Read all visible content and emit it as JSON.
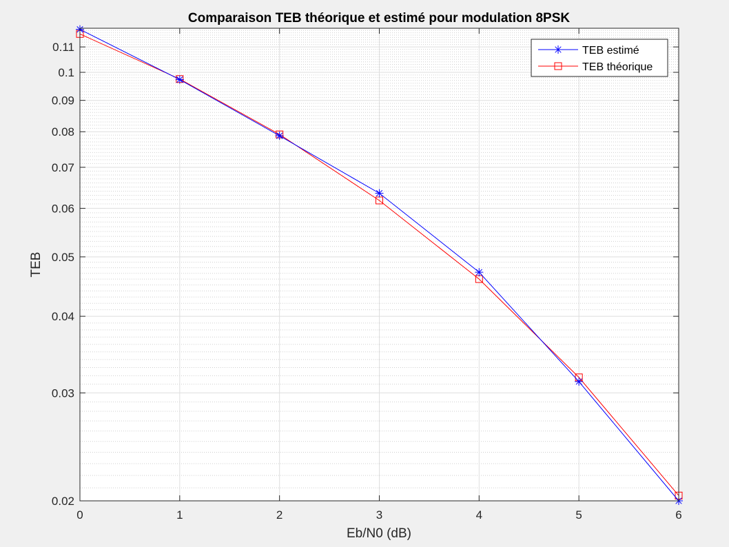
{
  "chart_data": {
    "type": "line",
    "title": "Comparaison TEB théorique et estimé pour modulation 8PSK",
    "xlabel": "Eb/N0 (dB)",
    "ylabel": "TEB",
    "x": [
      0,
      1,
      2,
      3,
      4,
      5,
      6
    ],
    "xlim": [
      0,
      6
    ],
    "ylim": [
      0.02,
      0.118
    ],
    "yscale": "log",
    "xticks": [
      "0",
      "1",
      "2",
      "3",
      "4",
      "5",
      "6"
    ],
    "yticks": [
      {
        "value": 0.02,
        "label": "0.02"
      },
      {
        "value": 0.03,
        "label": "0.03"
      },
      {
        "value": 0.04,
        "label": "0.04"
      },
      {
        "value": 0.05,
        "label": "0.05"
      },
      {
        "value": 0.06,
        "label": "0.06"
      },
      {
        "value": 0.07,
        "label": "0.07"
      },
      {
        "value": 0.08,
        "label": "0.08"
      },
      {
        "value": 0.09,
        "label": "0.09"
      },
      {
        "value": 0.1,
        "label": "0.1"
      },
      {
        "value": 0.11,
        "label": "0.11"
      }
    ],
    "grid": true,
    "minor_grid": true,
    "legend": "top-right",
    "series": [
      {
        "name": "TEB estimé",
        "color": "#0000ff",
        "marker": "asterisk",
        "values": [
          0.1175,
          0.0973,
          0.0788,
          0.0635,
          0.0472,
          0.0313,
          0.02
        ]
      },
      {
        "name": "TEB théorique",
        "color": "#ff0000",
        "marker": "square",
        "values": [
          0.1155,
          0.0975,
          0.0792,
          0.0618,
          0.046,
          0.0318,
          0.0204
        ]
      }
    ]
  }
}
